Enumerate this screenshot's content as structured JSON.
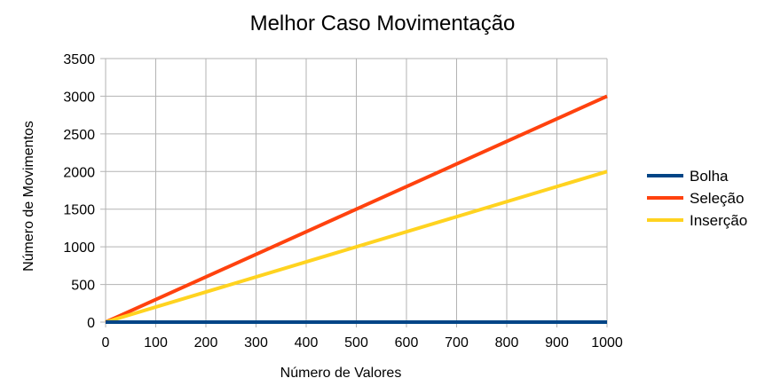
{
  "chart_data": {
    "type": "line",
    "title": "Melhor Caso Movimentação",
    "xlabel": "Número de Valores",
    "ylabel": "Número de Movimentos",
    "xlim": [
      0,
      1000
    ],
    "ylim": [
      0,
      3500
    ],
    "xticks": [
      0,
      100,
      200,
      300,
      400,
      500,
      600,
      700,
      800,
      900,
      1000
    ],
    "yticks": [
      0,
      500,
      1000,
      1500,
      2000,
      2500,
      3000,
      3500
    ],
    "grid": true,
    "legend_position": "right",
    "series": [
      {
        "name": "Bolha",
        "color": "#004586",
        "x": [
          0,
          1000
        ],
        "y": [
          0,
          0
        ]
      },
      {
        "name": "Seleção",
        "color": "#ff420e",
        "x": [
          0,
          1000
        ],
        "y": [
          0,
          3000
        ]
      },
      {
        "name": "Inserção",
        "color": "#ffd320",
        "x": [
          0,
          1000
        ],
        "y": [
          0,
          2000
        ]
      }
    ]
  }
}
